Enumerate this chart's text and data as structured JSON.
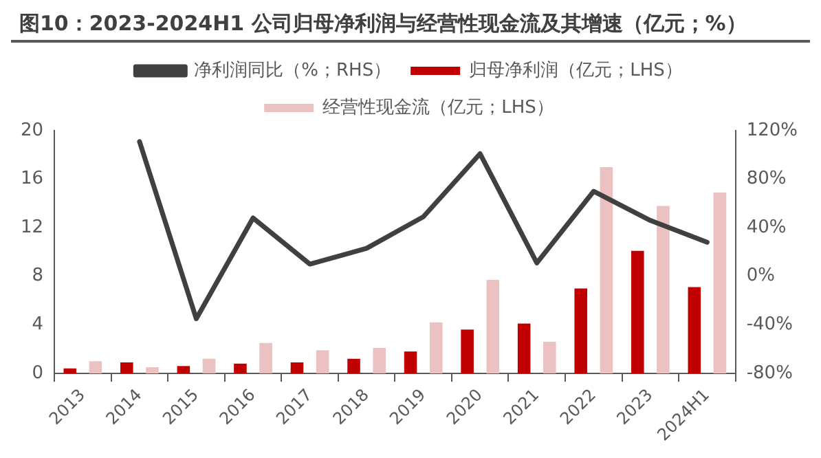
{
  "chart_data": {
    "type": "bar",
    "title": "图10：2023-2024H1 公司归母净利润与经营性现金流及其增速（亿元；%）",
    "categories": [
      "2013",
      "2014",
      "2015",
      "2016",
      "2017",
      "2018",
      "2019",
      "2020",
      "2021",
      "2022",
      "2023",
      "2024H1"
    ],
    "series": [
      {
        "name": "归母净利润（亿元；LHS）",
        "color": "#c00000",
        "values": [
          0.4,
          0.9,
          0.6,
          0.8,
          0.9,
          1.2,
          1.8,
          3.6,
          4.1,
          7.0,
          10.1,
          7.1
        ]
      },
      {
        "name": "经营性现金流（亿元；LHS）",
        "color": "#ebc1c1",
        "values": [
          1.0,
          0.5,
          1.2,
          2.5,
          1.9,
          2.1,
          4.2,
          7.7,
          2.6,
          17.0,
          13.8,
          14.9
        ]
      },
      {
        "name": "净利润同比（%；RHS）",
        "type": "line",
        "axis": "y2",
        "color": "#404040",
        "values": [
          null,
          111,
          -35,
          48,
          10,
          23,
          49,
          101,
          11,
          70,
          46,
          28
        ]
      }
    ],
    "ylim": [
      0,
      20
    ],
    "yticks": [
      0,
      4,
      8,
      12,
      16,
      20
    ],
    "y2lim": [
      -80,
      120
    ],
    "y2ticks": [
      {
        "value": -80,
        "label": "-80%"
      },
      {
        "value": -40,
        "label": "-40%"
      },
      {
        "value": 0,
        "label": "0%"
      },
      {
        "value": 40,
        "label": "40%"
      },
      {
        "value": 80,
        "label": "80%"
      },
      {
        "value": 120,
        "label": "120%"
      }
    ],
    "grid": false,
    "legend": "top",
    "marker": "none"
  }
}
